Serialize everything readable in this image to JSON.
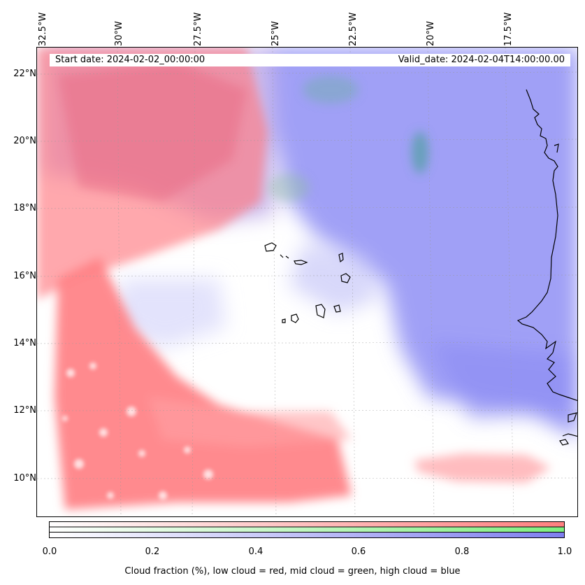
{
  "header": {
    "start_date": "Start date: 2024-02-02_00:00:00",
    "valid_date": "Valid_date: 2024-02-04T14:00:00.00"
  },
  "axes": {
    "lon_labels": [
      "32.5°W",
      "30°W",
      "27.5°W",
      "25°W",
      "22.5°W",
      "20°W",
      "17.5°W"
    ],
    "lat_labels": [
      "22°N",
      "20°N",
      "18°N",
      "16°N",
      "14°N",
      "12°N",
      "10°N"
    ]
  },
  "colorbar": {
    "ticks": [
      "0.0",
      "0.2",
      "0.4",
      "0.6",
      "0.8",
      "1.0"
    ],
    "caption": "Cloud fraction (%), low cloud = red, mid cloud = green, high cloud = blue",
    "colors": {
      "low": "#ff7f7f",
      "mid": "#7fef7f",
      "high": "#7f7fef"
    }
  }
}
